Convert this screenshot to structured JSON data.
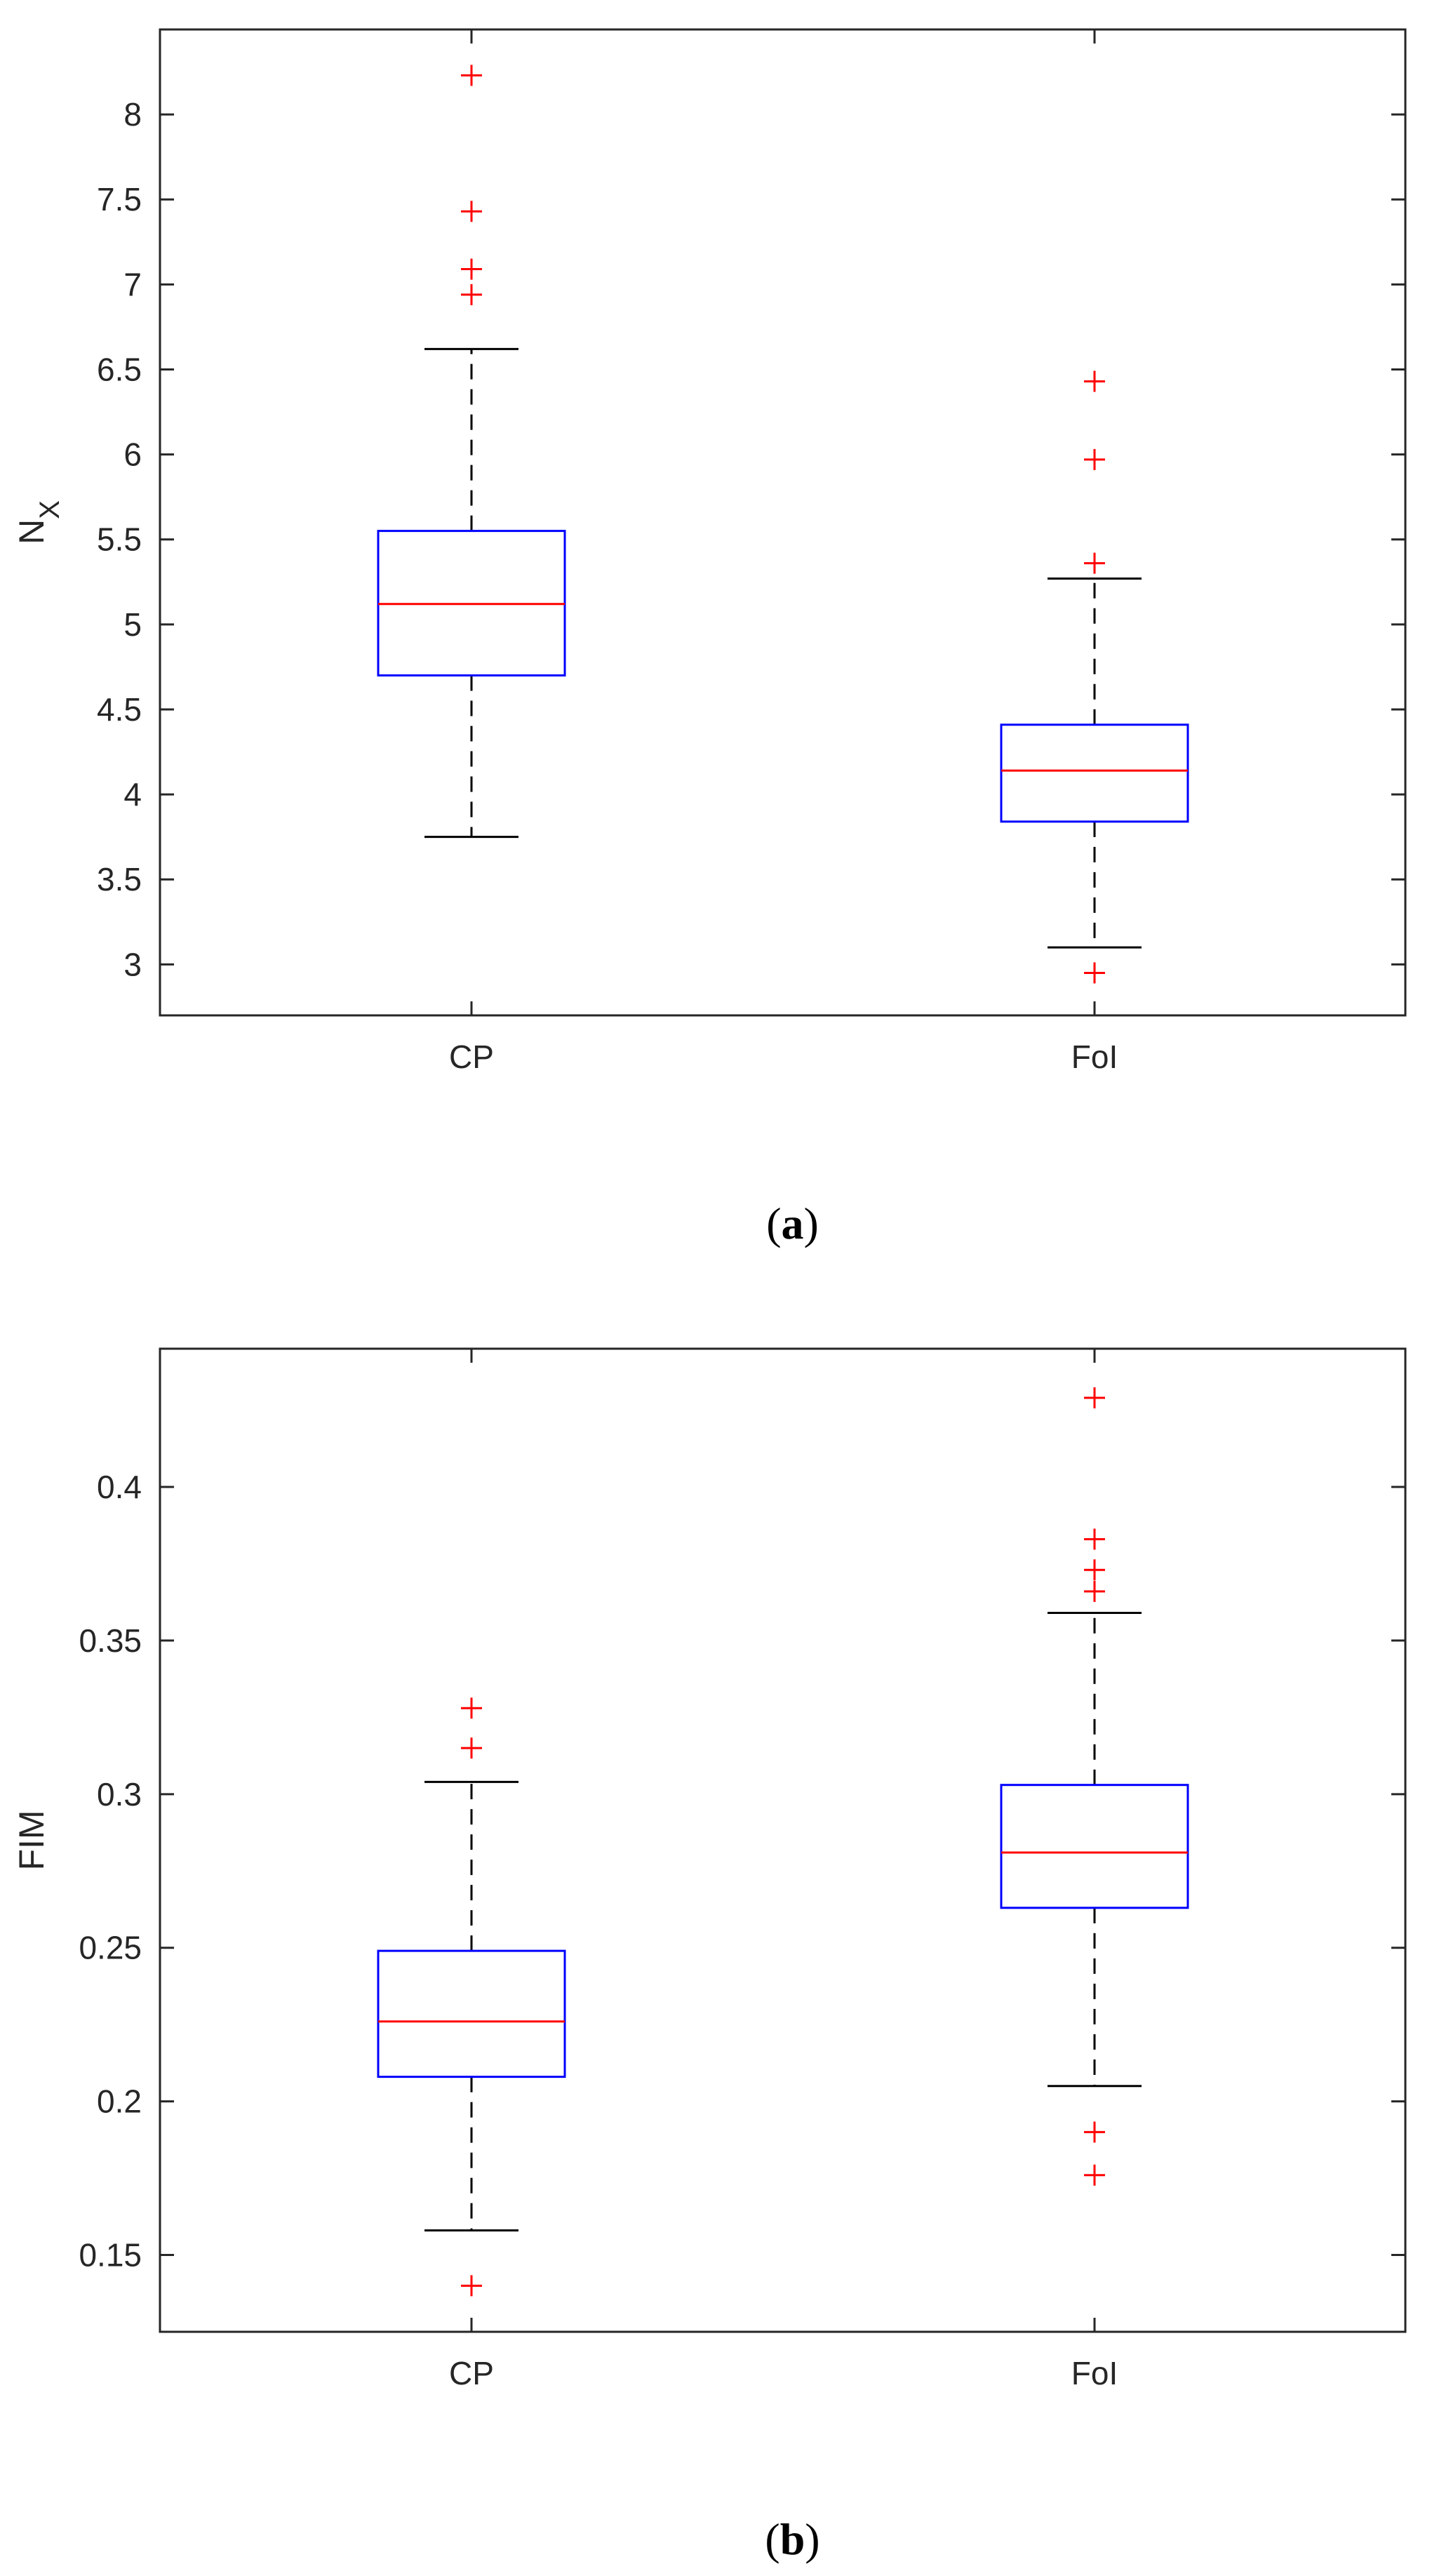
{
  "chart_data": [
    {
      "type": "box",
      "panel_label": "a",
      "ylabel": "N",
      "ylabel_subscript": "X",
      "categories": [
        "CP",
        "FoI"
      ],
      "ylim": [
        2.7,
        8.5
      ],
      "yticks": [
        3,
        3.5,
        4,
        4.5,
        5,
        5.5,
        6,
        6.5,
        7,
        7.5,
        8
      ],
      "ytick_labels": [
        "3",
        "3.5",
        "4",
        "4.5",
        "5",
        "5.5",
        "6",
        "6.5",
        "7",
        "7.5",
        "8"
      ],
      "boxes": [
        {
          "category": "CP",
          "q1": 4.7,
          "median": 5.12,
          "q3": 5.55,
          "whisker_low": 3.75,
          "whisker_high": 6.62,
          "outliers": [
            8.23,
            7.43,
            7.09,
            6.94
          ]
        },
        {
          "category": "FoI",
          "q1": 3.84,
          "median": 4.14,
          "q3": 4.41,
          "whisker_low": 3.1,
          "whisker_high": 5.27,
          "outliers": [
            6.43,
            5.97,
            5.36,
            2.95
          ]
        }
      ]
    },
    {
      "type": "box",
      "panel_label": "b",
      "ylabel": "FIM",
      "ylabel_subscript": "",
      "categories": [
        "CP",
        "FoI"
      ],
      "ylim": [
        0.125,
        0.445
      ],
      "yticks": [
        0.15,
        0.2,
        0.25,
        0.3,
        0.35,
        0.4
      ],
      "ytick_labels": [
        "0.15",
        "0.2",
        "0.25",
        "0.3",
        "0.35",
        "0.4"
      ],
      "boxes": [
        {
          "category": "CP",
          "q1": 0.208,
          "median": 0.226,
          "q3": 0.249,
          "whisker_low": 0.158,
          "whisker_high": 0.304,
          "outliers": [
            0.328,
            0.315,
            0.14
          ]
        },
        {
          "category": "FoI",
          "q1": 0.263,
          "median": 0.281,
          "q3": 0.303,
          "whisker_low": 0.205,
          "whisker_high": 0.359,
          "outliers": [
            0.429,
            0.383,
            0.373,
            0.366,
            0.19,
            0.176
          ]
        }
      ]
    }
  ],
  "colors": {
    "box": "#0000ff",
    "median": "#ff0000",
    "outlier": "#ff0000",
    "whisker": "#000000",
    "axis": "#262626"
  }
}
